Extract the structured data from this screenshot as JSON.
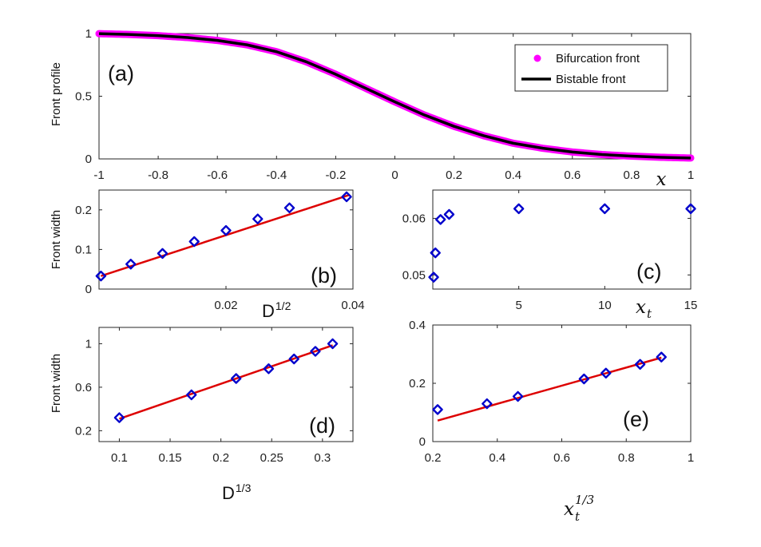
{
  "colors": {
    "magenta": "#ff00ff",
    "black": "#000000",
    "blue": "#0000cc",
    "red": "#dd0000",
    "axis": "#262626"
  },
  "chart_data": [
    {
      "id": "a",
      "type": "line",
      "panel_label": "(a)",
      "ylabel": "Front profile",
      "xlabel": "x",
      "xlim": [
        -1,
        1
      ],
      "ylim": [
        0,
        1
      ],
      "xticks": [
        -1,
        -0.8,
        -0.6,
        -0.4,
        -0.2,
        0,
        0.2,
        0.4,
        0.6,
        0.8,
        1
      ],
      "xtick_labels": [
        "-1",
        "-0.8",
        "-0.6",
        "-0.4",
        "-0.2",
        "0",
        "0.2",
        "0.4",
        "0.6",
        "0.8",
        "1"
      ],
      "yticks": [
        0,
        0.5,
        1
      ],
      "ytick_labels": [
        "0",
        "0.5",
        "1"
      ],
      "legend": [
        "Bifurcation front",
        "Bistable front"
      ],
      "legend_position": "top-right",
      "series": [
        {
          "name": "Bifurcation front",
          "style": "dots",
          "color": "#ff00ff",
          "x": [
            -1,
            -0.9,
            -0.8,
            -0.7,
            -0.6,
            -0.5,
            -0.4,
            -0.3,
            -0.2,
            -0.1,
            0,
            0.1,
            0.2,
            0.3,
            0.4,
            0.5,
            0.6,
            0.7,
            0.8,
            0.9,
            1
          ],
          "y": [
            0.999,
            0.993,
            0.983,
            0.968,
            0.945,
            0.91,
            0.855,
            0.775,
            0.675,
            0.565,
            0.455,
            0.35,
            0.26,
            0.185,
            0.125,
            0.085,
            0.055,
            0.035,
            0.022,
            0.013,
            0.007
          ]
        },
        {
          "name": "Bistable front",
          "style": "line",
          "color": "#000000",
          "x": [
            -1,
            -0.9,
            -0.8,
            -0.7,
            -0.6,
            -0.5,
            -0.4,
            -0.3,
            -0.2,
            -0.1,
            0,
            0.1,
            0.2,
            0.3,
            0.4,
            0.5,
            0.6,
            0.7,
            0.8,
            0.9,
            1
          ],
          "y": [
            0.999,
            0.993,
            0.983,
            0.968,
            0.945,
            0.91,
            0.855,
            0.775,
            0.675,
            0.565,
            0.455,
            0.35,
            0.26,
            0.185,
            0.125,
            0.085,
            0.055,
            0.035,
            0.022,
            0.013,
            0.007
          ]
        }
      ]
    },
    {
      "id": "b",
      "type": "scatter",
      "panel_label": "(b)",
      "ylabel": "Front width",
      "xlabel_base": "D",
      "xlabel_sup": "1/2",
      "xlim": [
        0,
        0.04
      ],
      "ylim": [
        0,
        0.25
      ],
      "xticks": [
        0.02,
        0.04
      ],
      "xtick_labels": [
        "0.02",
        "0.04"
      ],
      "yticks": [
        0,
        0.1,
        0.2
      ],
      "ytick_labels": [
        "0",
        "0.1",
        "0.2"
      ],
      "points": {
        "x": [
          0.0003,
          0.005,
          0.01,
          0.015,
          0.02,
          0.025,
          0.03,
          0.039
        ],
        "y": [
          0.033,
          0.063,
          0.09,
          0.12,
          0.148,
          0.177,
          0.205,
          0.233
        ]
      },
      "fit": {
        "x": [
          0.0003,
          0.0395
        ],
        "y": [
          0.033,
          0.238
        ]
      }
    },
    {
      "id": "c",
      "type": "scatter",
      "panel_label": "(c)",
      "ylabel": "",
      "xlabel_base": "x",
      "xlabel_sub": "t",
      "xlim": [
        0,
        15
      ],
      "ylim": [
        0.0475,
        0.065
      ],
      "xticks": [
        5,
        10,
        15
      ],
      "xtick_labels": [
        "5",
        "10",
        "15"
      ],
      "yticks": [
        0.05,
        0.06
      ],
      "ytick_labels": [
        "0.05",
        "0.06"
      ],
      "points": {
        "x": [
          0.05,
          0.15,
          0.45,
          0.95,
          5,
          10,
          15
        ],
        "y": [
          0.0496,
          0.0539,
          0.0598,
          0.0607,
          0.0617,
          0.0617,
          0.0617
        ]
      }
    },
    {
      "id": "d",
      "type": "scatter",
      "panel_label": "(d)",
      "ylabel": "Front width",
      "xlabel_base": "D",
      "xlabel_sup": "1/3",
      "xlim": [
        0.08,
        0.33
      ],
      "ylim": [
        0.1,
        1.15
      ],
      "xticks": [
        0.1,
        0.15,
        0.2,
        0.25,
        0.3
      ],
      "xtick_labels": [
        "0.1",
        "0.15",
        "0.2",
        "0.25",
        "0.3"
      ],
      "yticks": [
        0.2,
        0.6,
        1
      ],
      "ytick_labels": [
        "0.2",
        "0.6",
        "1"
      ],
      "points": {
        "x": [
          0.1,
          0.171,
          0.215,
          0.247,
          0.272,
          0.293,
          0.31
        ],
        "y": [
          0.32,
          0.53,
          0.68,
          0.77,
          0.86,
          0.93,
          1.0
        ]
      },
      "fit": {
        "x": [
          0.1,
          0.31
        ],
        "y": [
          0.31,
          0.985
        ]
      }
    },
    {
      "id": "e",
      "type": "scatter",
      "panel_label": "(e)",
      "ylabel": "",
      "xlabel_base": "x",
      "xlabel_sub": "t",
      "xlabel_sup": "1/3",
      "xlim": [
        0.2,
        1
      ],
      "ylim": [
        0,
        0.4
      ],
      "xticks": [
        0.2,
        0.4,
        0.6,
        0.8,
        1
      ],
      "xtick_labels": [
        "0.2",
        "0.4",
        "0.6",
        "0.8",
        "1"
      ],
      "yticks": [
        0,
        0.2,
        0.4
      ],
      "ytick_labels": [
        "0",
        "0.2",
        "0.4"
      ],
      "points": {
        "x": [
          0.215,
          0.368,
          0.464,
          0.669,
          0.737,
          0.843,
          0.909
        ],
        "y": [
          0.11,
          0.13,
          0.155,
          0.215,
          0.235,
          0.265,
          0.29
        ]
      },
      "fit": {
        "x": [
          0.215,
          0.909
        ],
        "y": [
          0.072,
          0.288
        ]
      }
    }
  ]
}
